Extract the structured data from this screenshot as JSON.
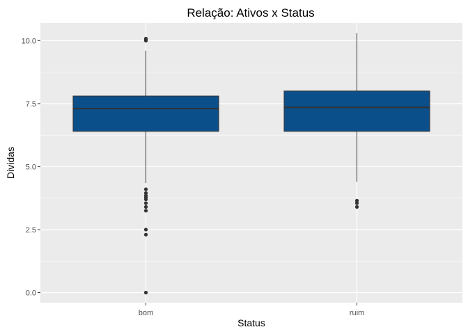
{
  "chart_data": {
    "type": "boxplot",
    "title": "Relação: Ativos x Status",
    "xlabel": "Status",
    "ylabel": "Dividas",
    "categories": [
      "bom",
      "ruim"
    ],
    "ylim": [
      -0.4,
      10.7
    ],
    "yticks": [
      0.0,
      2.5,
      5.0,
      7.5,
      10.0
    ],
    "ytick_labels": [
      "0.0",
      "2.5",
      "5.0",
      "7.5",
      "10.0"
    ],
    "grid": true,
    "box_color": "#0b4f8a",
    "panel_color": "#ebebeb",
    "boxes": [
      {
        "category": "bom",
        "whisker_low": 4.35,
        "q1": 6.4,
        "median": 7.3,
        "q3": 7.8,
        "whisker_high": 9.6,
        "outliers": [
          10.0,
          10.05,
          10.08,
          4.1,
          3.95,
          3.85,
          3.78,
          3.7,
          3.55,
          3.4,
          3.25,
          2.5,
          2.3,
          0.0
        ]
      },
      {
        "category": "ruim",
        "whisker_low": 4.4,
        "q1": 6.4,
        "median": 7.35,
        "q3": 8.0,
        "whisker_high": 10.3,
        "outliers": [
          3.65,
          3.55,
          3.4
        ]
      }
    ]
  }
}
